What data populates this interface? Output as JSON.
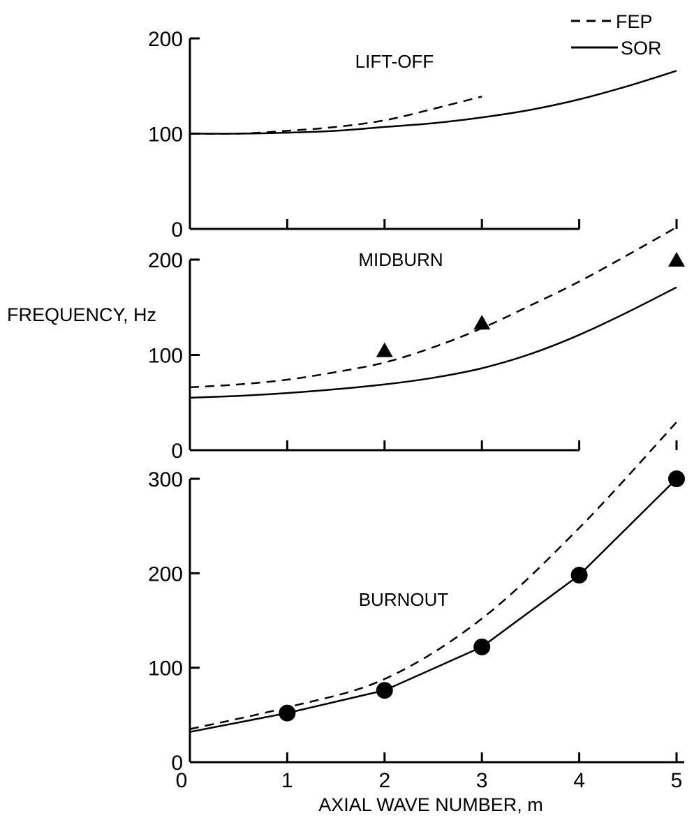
{
  "chart_data": [
    {
      "type": "line",
      "title": "LIFT-OFF",
      "xlabel": "AXIAL WAVE NUMBER, m",
      "ylabel": "FREQUENCY, Hz",
      "xlim": [
        0,
        5
      ],
      "ylim": [
        0,
        200
      ],
      "yticks": [
        "0",
        "100",
        "200"
      ],
      "xticks": [
        "0",
        "1",
        "2",
        "3",
        "4",
        "5"
      ],
      "x_tick_labels_shown": false,
      "series": [
        {
          "name": "FEP",
          "style": "dashed",
          "x": [
            0,
            0.5,
            1,
            1.5,
            2,
            2.5,
            3
          ],
          "y": [
            100,
            100,
            103,
            107,
            114,
            126,
            139
          ]
        },
        {
          "name": "SOR",
          "style": "solid",
          "x": [
            0,
            0.5,
            1,
            1.5,
            2,
            2.5,
            3,
            3.5,
            4,
            4.5,
            5
          ],
          "y": [
            100,
            100,
            101,
            103,
            107,
            111,
            117,
            125,
            136,
            150,
            166
          ]
        }
      ]
    },
    {
      "type": "line",
      "title": "MIDBURN",
      "xlim": [
        0,
        5
      ],
      "ylim": [
        0,
        200
      ],
      "yticks": [
        "0",
        "100",
        "200"
      ],
      "xticks": [
        "0",
        "1",
        "2",
        "3",
        "4",
        "5"
      ],
      "x_tick_labels_shown": false,
      "series": [
        {
          "name": "FEP",
          "style": "dashed",
          "x": [
            0,
            0.5,
            1,
            1.5,
            2,
            2.5,
            3,
            3.5,
            4,
            4.5,
            5
          ],
          "y": [
            66,
            69,
            74,
            82,
            92,
            108,
            128,
            152,
            177,
            205,
            234
          ]
        },
        {
          "name": "SOR",
          "style": "solid",
          "x": [
            0,
            0.5,
            1,
            1.5,
            2,
            2.5,
            3,
            3.5,
            4,
            4.5,
            5
          ],
          "y": [
            55,
            57,
            60,
            64,
            69,
            76,
            86,
            101,
            121,
            145,
            171
          ]
        },
        {
          "name": "",
          "style": "triangle-markers",
          "x": [
            2,
            3,
            5
          ],
          "y": [
            105,
            134,
            200
          ]
        }
      ]
    },
    {
      "type": "line",
      "title": "BURNOUT",
      "xlim": [
        0,
        5
      ],
      "ylim": [
        0,
        300
      ],
      "yticks": [
        "0",
        "100",
        "200",
        "300"
      ],
      "xticks": [
        "0",
        "1",
        "2",
        "3",
        "4",
        "5"
      ],
      "x_tick_labels_shown": true,
      "series": [
        {
          "name": "FEP",
          "style": "dashed",
          "x": [
            0,
            1,
            2,
            3,
            4,
            5
          ],
          "y": [
            35,
            58,
            88,
            152,
            248,
            360
          ]
        },
        {
          "name": "SOR",
          "style": "solid-circle-markers",
          "x": [
            0,
            1,
            2,
            3,
            4,
            5
          ],
          "y": [
            32,
            52,
            76,
            122,
            198,
            300
          ]
        }
      ]
    }
  ],
  "legend": [
    {
      "label": "FEP",
      "style": "dashed"
    },
    {
      "label": "SOR",
      "style": "solid"
    }
  ]
}
